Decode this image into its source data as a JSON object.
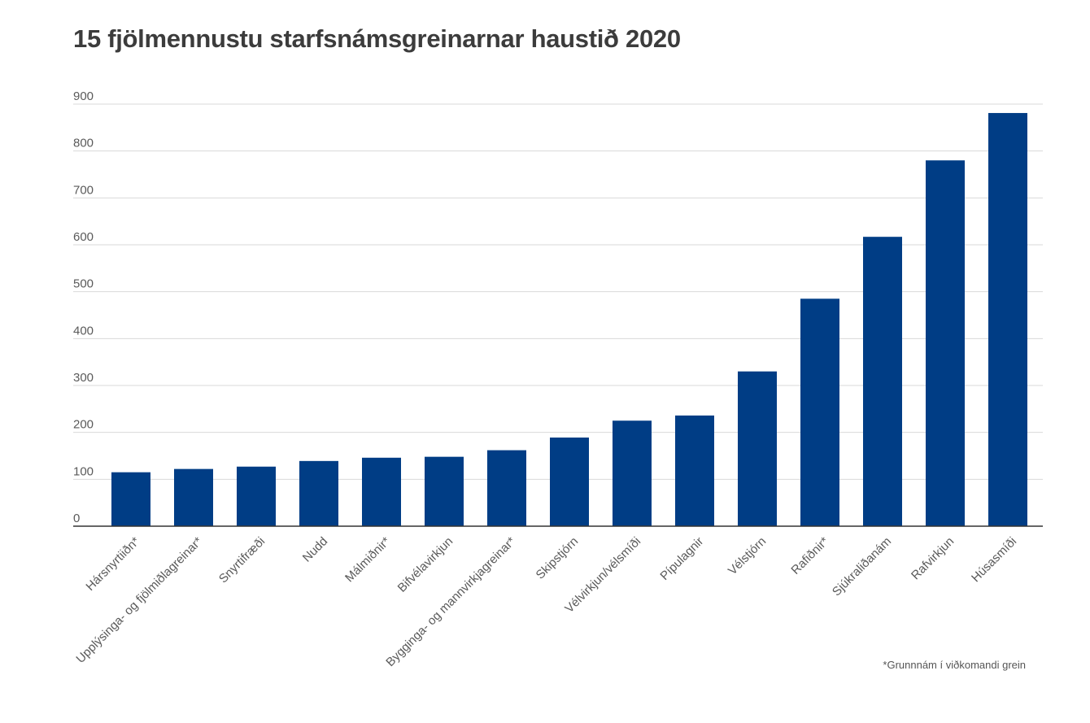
{
  "chart_data": {
    "type": "bar",
    "title": "15 fjölmennustu starfsnámsgreinarnar haustið 2020",
    "xlabel": "",
    "ylabel": "",
    "ylim": [
      0,
      900
    ],
    "yticks": [
      0,
      100,
      200,
      300,
      400,
      500,
      600,
      700,
      800,
      900
    ],
    "grid": true,
    "legend": "none",
    "bar_color": "#003d85",
    "categories": [
      "Hársnyrtiiðn*",
      "Upplýsinga- og fjölmiðlagreinar*",
      "Snyrtifræði",
      "Nudd",
      "Málmiðnir*",
      "Bifvélavirkjun",
      "Bygginga- og mannvirkjagreinar*",
      "Skipstjórn",
      "Vélvirkjun/vélsmíði",
      "Pípulagnir",
      "Vélstjórn",
      "Rafiðnir*",
      "Sjúkraliðanám",
      "Rafvirkjun",
      "Húsasmíði"
    ],
    "values": [
      115,
      122,
      127,
      139,
      146,
      148,
      162,
      189,
      225,
      236,
      330,
      485,
      617,
      780,
      881
    ],
    "footnote": "*Grunnnám í viðkomandi grein"
  }
}
